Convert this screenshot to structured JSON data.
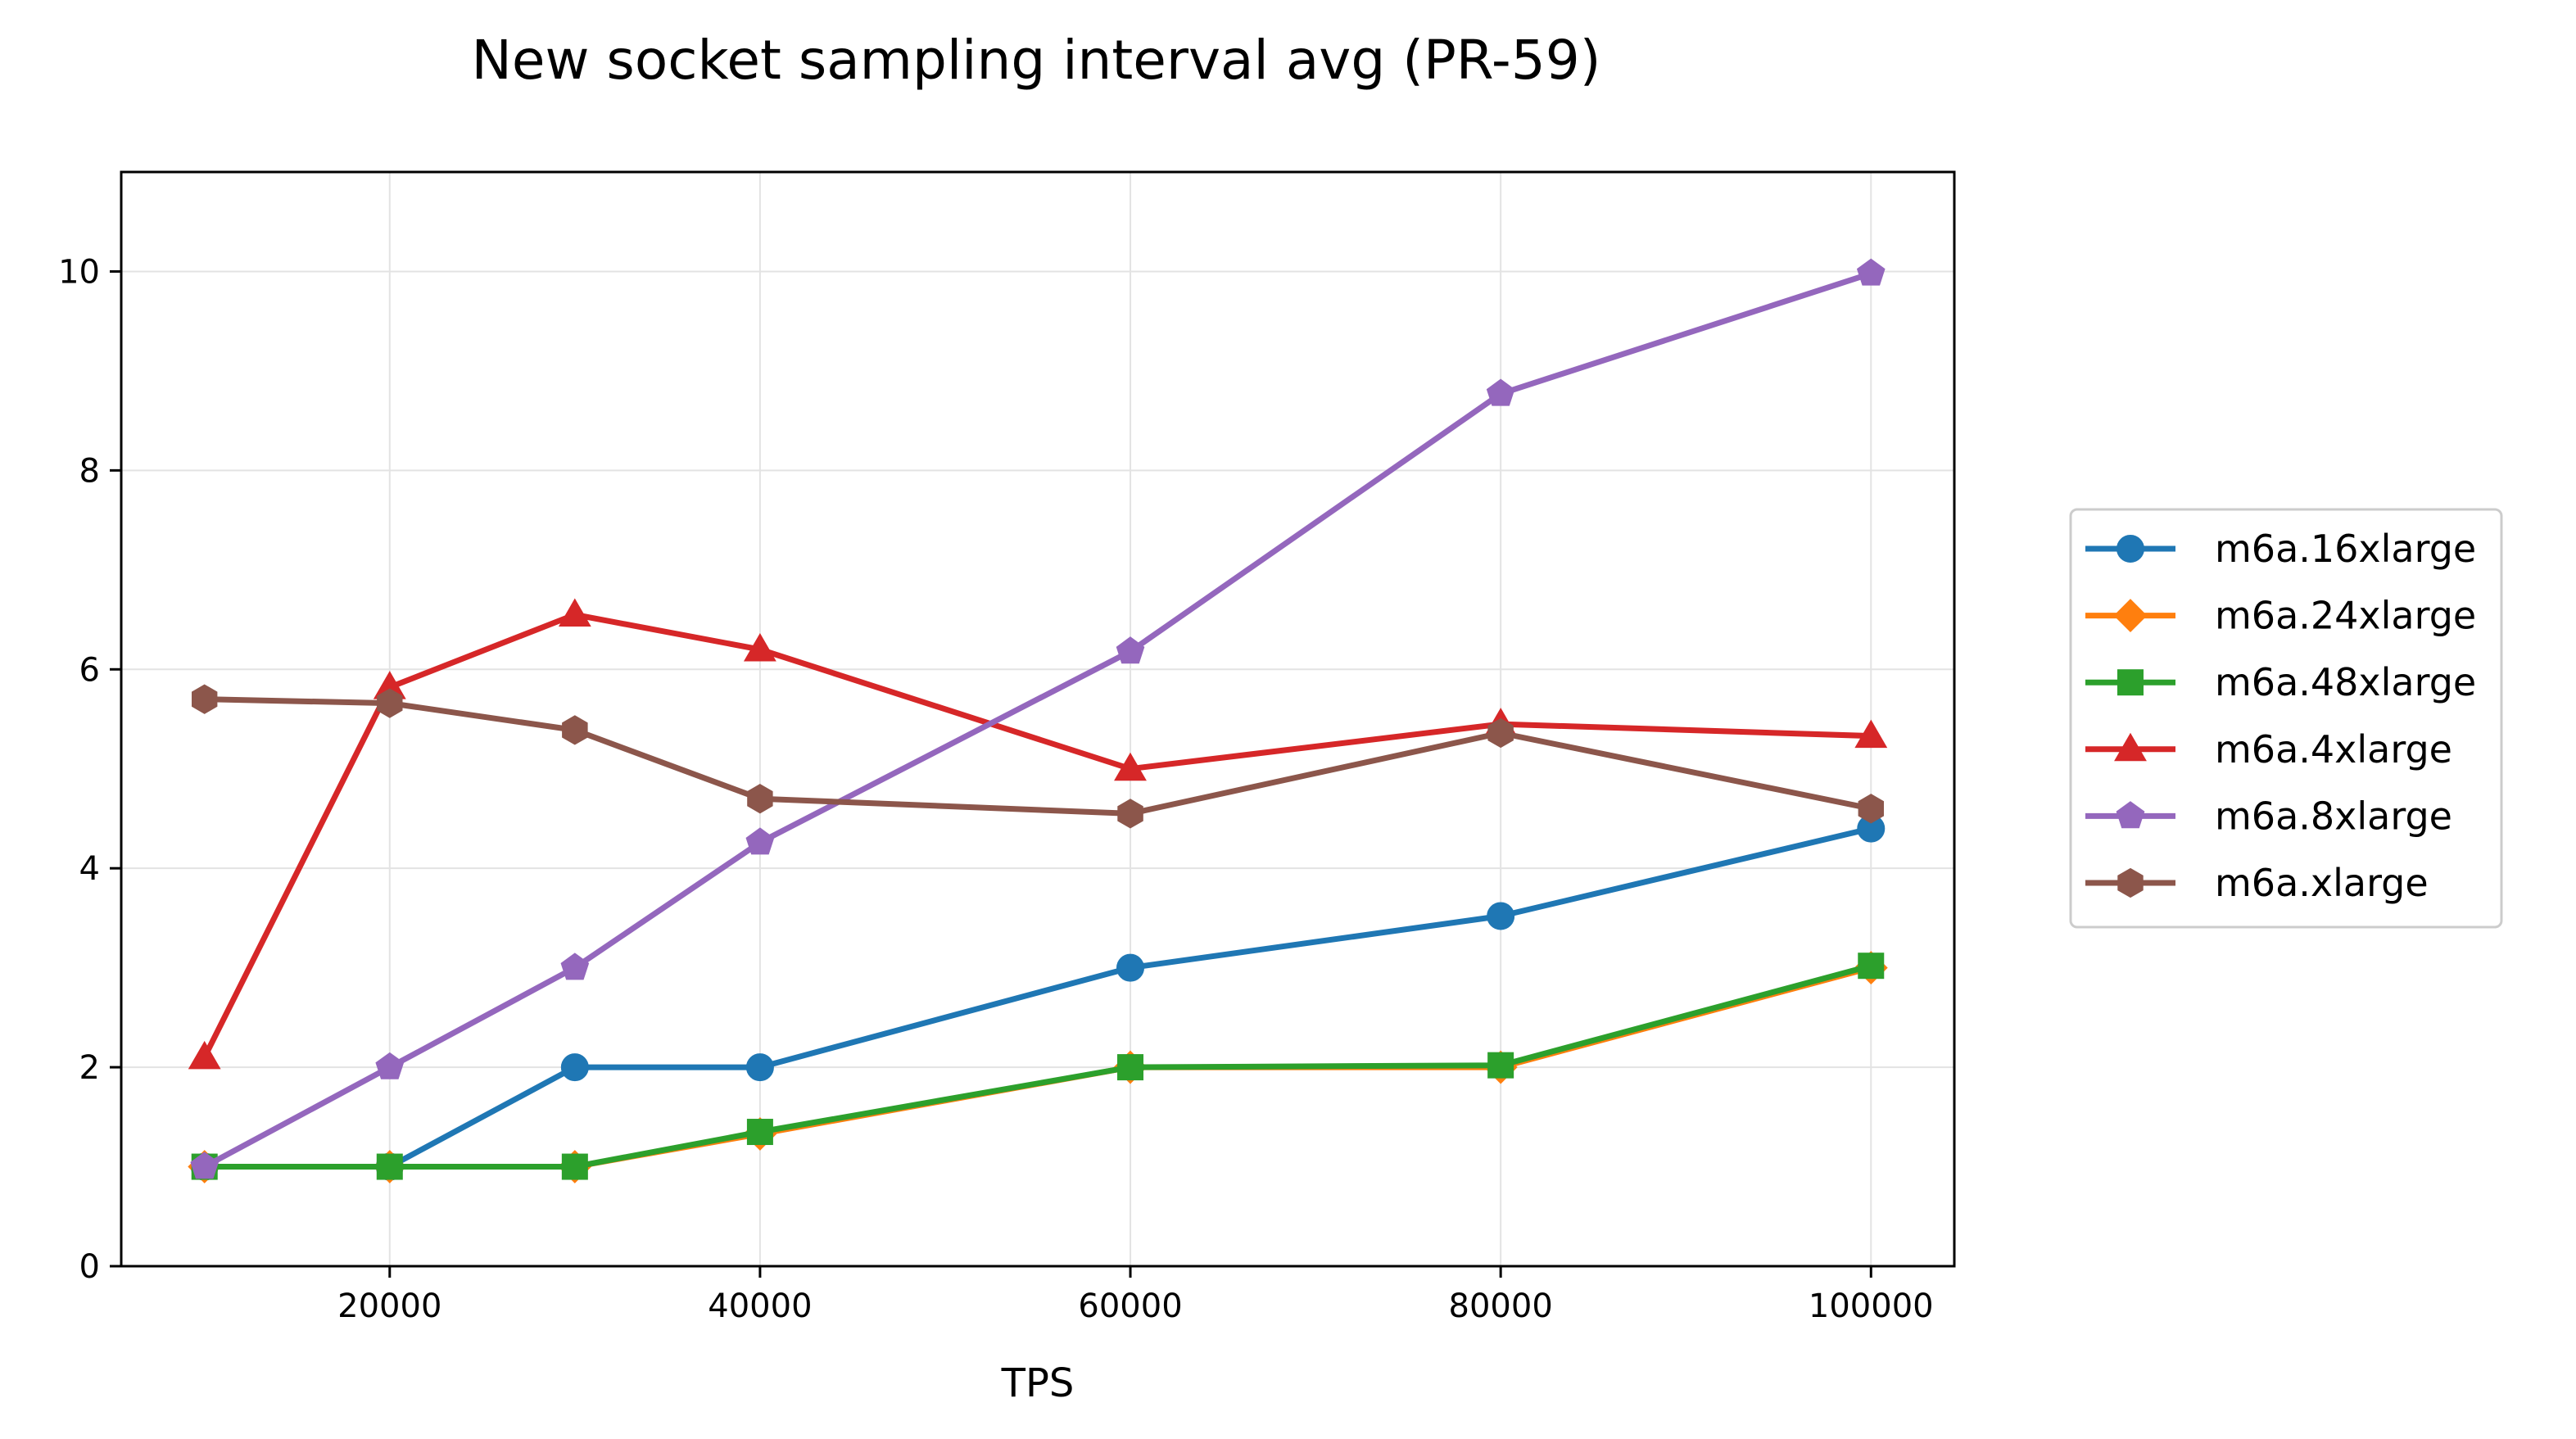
{
  "chart_data": {
    "type": "line",
    "title": "New socket sampling interval avg (PR-59)",
    "xlabel": "TPS",
    "ylabel": "",
    "xlim": [
      5500,
      104500
    ],
    "ylim": [
      0,
      11
    ],
    "xticks": [
      20000,
      40000,
      60000,
      80000,
      100000
    ],
    "yticks": [
      0,
      2,
      4,
      6,
      8,
      10
    ],
    "grid": true,
    "legend_position": "right",
    "series": [
      {
        "name": "m6a.16xlarge",
        "color": "#1f77b4",
        "marker": "circle",
        "x": [
          10000,
          20000,
          30000,
          40000,
          60000,
          80000,
          100000
        ],
        "y": [
          1.0,
          1.0,
          2.0,
          2.0,
          3.0,
          3.52,
          4.4
        ]
      },
      {
        "name": "m6a.24xlarge",
        "color": "#ff7f0e",
        "marker": "diamond",
        "x": [
          10000,
          20000,
          30000,
          40000,
          60000,
          80000,
          100000
        ],
        "y": [
          1.0,
          1.0,
          1.0,
          1.33,
          2.0,
          2.0,
          3.0
        ]
      },
      {
        "name": "m6a.48xlarge",
        "color": "#2ca02c",
        "marker": "square",
        "x": [
          10000,
          20000,
          30000,
          40000,
          60000,
          80000,
          100000
        ],
        "y": [
          1.0,
          1.0,
          1.0,
          1.35,
          2.0,
          2.02,
          3.02
        ]
      },
      {
        "name": "m6a.4xlarge",
        "color": "#d62728",
        "marker": "triangle",
        "x": [
          10000,
          20000,
          30000,
          40000,
          60000,
          80000,
          100000
        ],
        "y": [
          2.1,
          5.82,
          6.55,
          6.2,
          5.0,
          5.45,
          5.33
        ]
      },
      {
        "name": "m6a.8xlarge",
        "color": "#9467bd",
        "marker": "pentagon",
        "x": [
          10000,
          20000,
          30000,
          40000,
          60000,
          80000,
          100000
        ],
        "y": [
          1.0,
          2.0,
          3.0,
          4.26,
          6.18,
          8.77,
          9.98
        ]
      },
      {
        "name": "m6a.xlarge",
        "color": "#8c564b",
        "marker": "hexagon",
        "x": [
          10000,
          20000,
          30000,
          40000,
          60000,
          80000,
          100000
        ],
        "y": [
          5.7,
          5.66,
          5.39,
          4.7,
          4.55,
          5.36,
          4.6
        ]
      }
    ]
  }
}
